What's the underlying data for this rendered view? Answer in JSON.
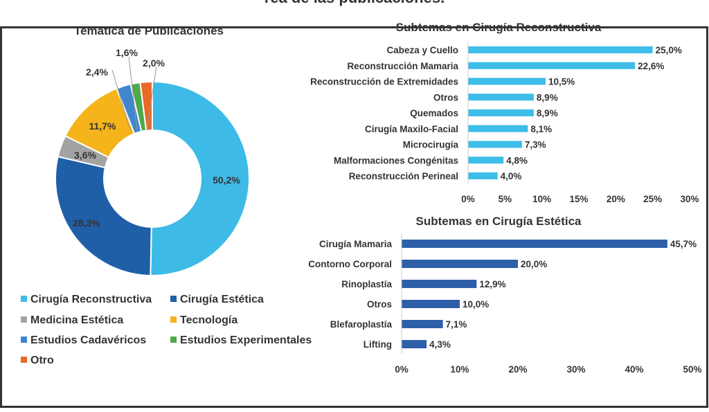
{
  "header_fragment": "rea de las publicaciones.",
  "chart_data": [
    {
      "type": "pie",
      "donut": true,
      "title": "Temática de Publicaciones",
      "categories": [
        "Cirugía Reconstructiva",
        "Cirugía Estética",
        "Medicina Estética",
        "Tecnología",
        "Estudios Cadavéricos",
        "Estudios Experimentales",
        "Otro"
      ],
      "values": [
        50.2,
        28.3,
        3.6,
        11.7,
        2.4,
        1.6,
        2.0
      ],
      "labels": [
        "50,2%",
        "28,3%",
        "3,6%",
        "11,7%",
        "2,4%",
        "1,6%",
        "2,0%"
      ],
      "colors": [
        "#3dbbe6",
        "#1f5fa8",
        "#a3a3a3",
        "#f4b41a",
        "#3f86cc",
        "#4ea94b",
        "#e8692a"
      ],
      "legend_position": "bottom"
    },
    {
      "type": "bar",
      "orientation": "horizontal",
      "title": "Subtemas en Cirugía Reconstructiva",
      "categories": [
        "Cabeza y Cuello",
        "Reconstrucción Mamaria",
        "Reconstrucción de Extremidades",
        "Otros",
        "Quemados",
        "Cirugía Maxilo-Facial",
        "Microcirugía",
        "Malformaciones Congénitas",
        "Reconstrucción Perineal"
      ],
      "values": [
        25.0,
        22.6,
        10.5,
        8.9,
        8.9,
        8.1,
        7.3,
        4.8,
        4.0
      ],
      "labels": [
        "25,0%",
        "22,6%",
        "10,5%",
        "8,9%",
        "8,9%",
        "8,1%",
        "7,3%",
        "4,8%",
        "4,0%"
      ],
      "xlim": [
        0,
        30
      ],
      "ticks": [
        "0%",
        "5%",
        "10%",
        "15%",
        "20%",
        "25%",
        "30%"
      ],
      "color": "#3dbde8",
      "grid": false
    },
    {
      "type": "bar",
      "orientation": "horizontal",
      "title": "Subtemas en Cirugía Estética",
      "categories": [
        "Cirugía Mamaria",
        "Contorno Corporal",
        "Rinoplastía",
        "Otros",
        "Blefaroplastía",
        "Lifting"
      ],
      "values": [
        45.7,
        20.0,
        12.9,
        10.0,
        7.1,
        4.3
      ],
      "labels": [
        "45,7%",
        "20,0%",
        "12,9%",
        "10,0%",
        "7,1%",
        "4,3%"
      ],
      "xlim": [
        0,
        50
      ],
      "ticks": [
        "0%",
        "10%",
        "20%",
        "30%",
        "40%",
        "50%"
      ],
      "color": "#2e5fa9",
      "grid": false
    }
  ]
}
